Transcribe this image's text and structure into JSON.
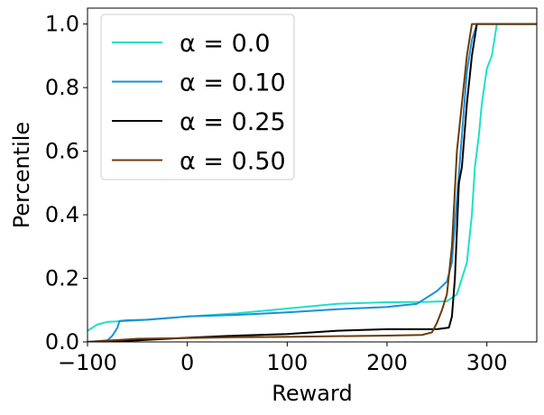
{
  "chart_data": {
    "type": "line",
    "title": "",
    "xlabel": "Reward",
    "ylabel": "Percentile",
    "xlim": [
      -100,
      350
    ],
    "ylim": [
      0,
      1.05
    ],
    "xticks": [
      -100,
      0,
      100,
      200,
      300
    ],
    "xtick_labels": [
      "−100",
      "0",
      "100",
      "200",
      "300"
    ],
    "yticks": [
      0.0,
      0.2,
      0.4,
      0.6,
      0.8,
      1.0
    ],
    "ytick_labels": [
      "0.0",
      "0.2",
      "0.4",
      "0.6",
      "0.8",
      "1.0"
    ],
    "grid": false,
    "legend_position": "top-left",
    "series": [
      {
        "name": "α = 0.0",
        "color": "#1de0c8",
        "x": [
          -100,
          -90,
          -80,
          -60,
          -40,
          -20,
          0,
          50,
          100,
          150,
          200,
          240,
          260,
          270,
          280,
          285,
          288,
          290,
          292,
          295,
          300,
          305,
          310,
          350
        ],
        "y": [
          0.035,
          0.055,
          0.063,
          0.066,
          0.07,
          0.075,
          0.08,
          0.09,
          0.105,
          0.12,
          0.125,
          0.126,
          0.128,
          0.15,
          0.25,
          0.4,
          0.55,
          0.6,
          0.65,
          0.75,
          0.86,
          0.9,
          1.0,
          1.0
        ]
      },
      {
        "name": "α = 0.10",
        "color": "#1a8fd8",
        "x": [
          -100,
          -80,
          -75,
          -70,
          -68,
          -60,
          -40,
          -20,
          0,
          50,
          100,
          150,
          200,
          230,
          240,
          250,
          260,
          265,
          270,
          275,
          280,
          285,
          290,
          295,
          350
        ],
        "y": [
          0.0,
          0.005,
          0.02,
          0.045,
          0.066,
          0.068,
          0.07,
          0.075,
          0.08,
          0.085,
          0.093,
          0.103,
          0.11,
          0.12,
          0.14,
          0.16,
          0.19,
          0.25,
          0.45,
          0.65,
          0.85,
          0.95,
          1.0,
          1.0,
          1.0
        ]
      },
      {
        "name": "α = 0.25",
        "color": "#000000",
        "x": [
          -100,
          -50,
          0,
          50,
          100,
          150,
          200,
          250,
          262,
          265,
          268,
          270,
          272,
          275,
          280,
          285,
          290,
          350
        ],
        "y": [
          0.0,
          0.005,
          0.013,
          0.02,
          0.025,
          0.035,
          0.04,
          0.04,
          0.045,
          0.08,
          0.2,
          0.35,
          0.5,
          0.55,
          0.75,
          0.9,
          1.0,
          1.0
        ]
      },
      {
        "name": "α = 0.50",
        "color": "#6b3a07",
        "x": [
          -100,
          -50,
          0,
          50,
          100,
          150,
          200,
          235,
          245,
          250,
          255,
          260,
          265,
          270,
          275,
          280,
          285,
          350
        ],
        "y": [
          0.0,
          0.01,
          0.012,
          0.015,
          0.016,
          0.018,
          0.02,
          0.022,
          0.03,
          0.06,
          0.1,
          0.15,
          0.3,
          0.6,
          0.75,
          0.9,
          1.0,
          1.0
        ]
      }
    ]
  }
}
